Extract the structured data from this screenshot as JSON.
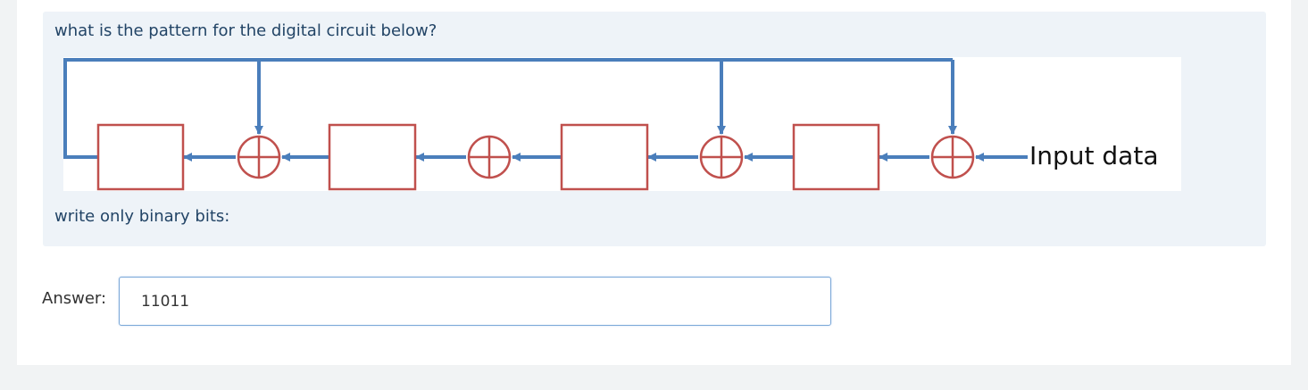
{
  "question": {
    "prompt": "what is the pattern for the digital circuit below?",
    "instruction": "write only binary bits:"
  },
  "circuit": {
    "input_label": "Input data",
    "register_count": 4,
    "xor_count": 4,
    "feedback_taps": [
      1,
      3,
      4
    ],
    "wire_color": "#4a7ebb",
    "component_color": "#c0504d"
  },
  "answer": {
    "label": "Answer:",
    "value": "11011"
  }
}
